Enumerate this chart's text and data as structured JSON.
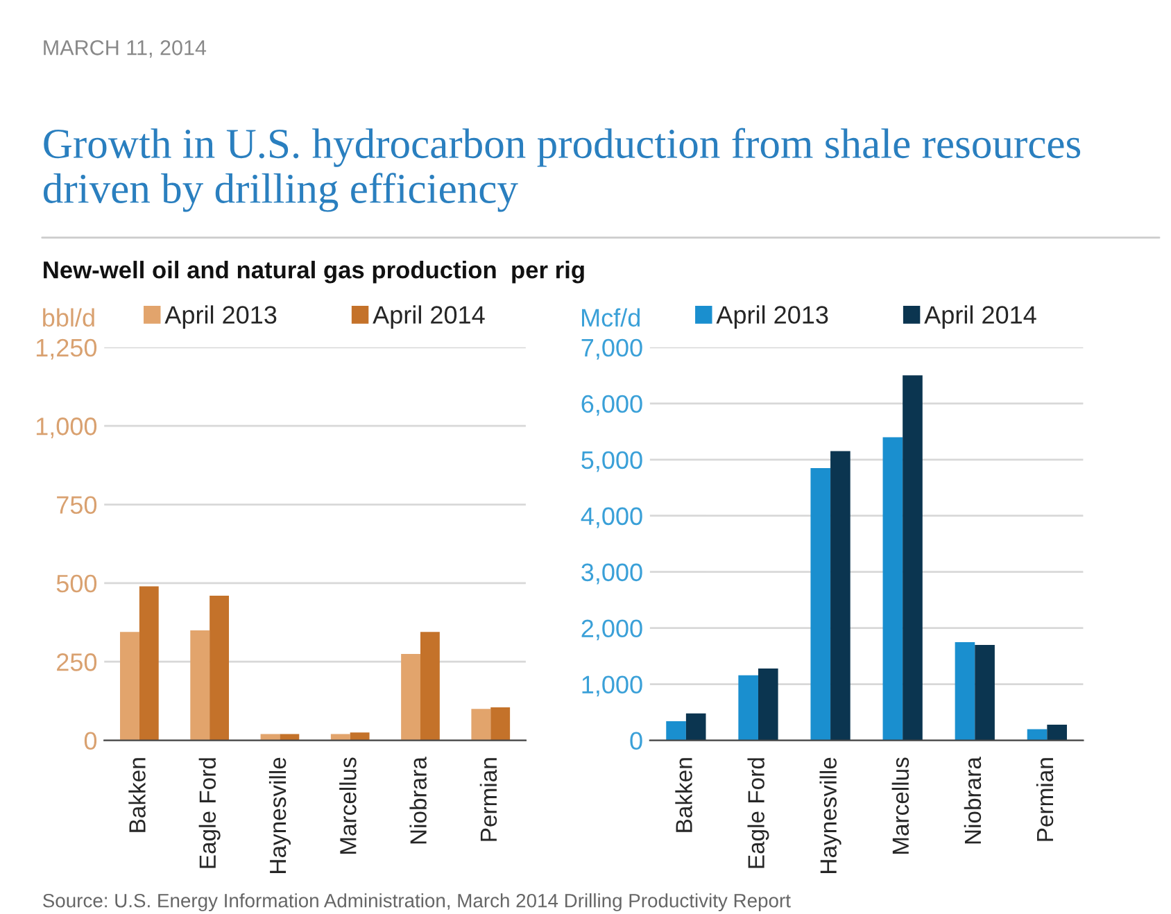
{
  "chart_data": [
    {
      "type": "bar",
      "title": "Growth in U.S. hydrocarbon production from shale resources driven by drilling efficiency",
      "subtitle": "New-well oil and natural gas production  per rig",
      "ylabel": "bbl/d",
      "annotations": [
        "MARCH 11, 2014"
      ],
      "categories": [
        "Bakken",
        "Eagle Ford",
        "Haynesville",
        "Marcellus",
        "Niobrara",
        "Permian"
      ],
      "series": [
        {
          "name": "April 2013",
          "color": "#e2a46c",
          "values": [
            345,
            350,
            20,
            20,
            275,
            100
          ]
        },
        {
          "name": "April 2014",
          "color": "#c4722a",
          "values": [
            490,
            460,
            20,
            25,
            345,
            105
          ]
        }
      ],
      "ylim": [
        0,
        1250
      ],
      "yticks": [
        0,
        250,
        500,
        750,
        {
          "value": 1000,
          "label": "1,000"
        },
        {
          "value": 1250,
          "label": "1,250"
        }
      ],
      "grid": "y",
      "legend": "top"
    },
    {
      "type": "bar",
      "ylabel": "Mcf/d",
      "annotations": [
        "Source: U.S. Energy Information Administration, March 2014 Drilling Productivity Report"
      ],
      "categories": [
        "Bakken",
        "Eagle Ford",
        "Haynesville",
        "Marcellus",
        "Niobrara",
        "Permian"
      ],
      "series": [
        {
          "name": "April 2013",
          "color": "#1a8fcf",
          "values": [
            340,
            1160,
            4850,
            5400,
            1750,
            200
          ]
        },
        {
          "name": "April 2014",
          "color": "#0b3550",
          "values": [
            480,
            1280,
            5150,
            6500,
            1700,
            280
          ]
        }
      ],
      "ylim": [
        0,
        7000
      ],
      "yticks": [
        0,
        {
          "value": 1000,
          "label": "1,000"
        },
        {
          "value": 2000,
          "label": "2,000"
        },
        {
          "value": 3000,
          "label": "3,000"
        },
        {
          "value": 4000,
          "label": "4,000"
        },
        {
          "value": 5000,
          "label": "5,000"
        },
        {
          "value": 6000,
          "label": "6,000"
        },
        {
          "value": 7000,
          "label": "7,000"
        }
      ],
      "grid": "y",
      "legend": "top"
    }
  ]
}
